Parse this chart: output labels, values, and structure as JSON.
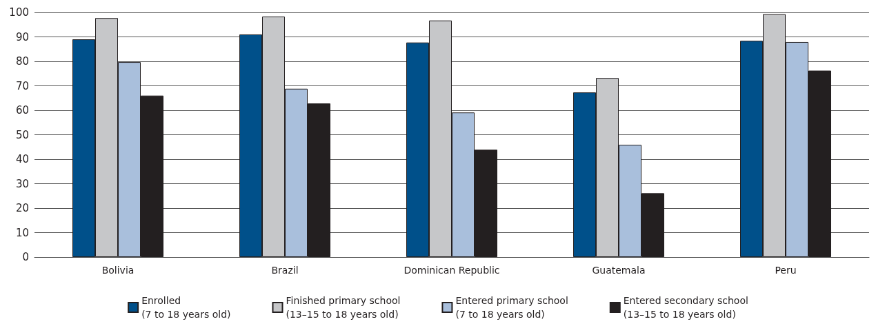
{
  "chart_data": {
    "type": "bar",
    "categories": [
      "Bolivia",
      "Brazil",
      "Dominican Republic",
      "Guatemala",
      "Peru"
    ],
    "series": [
      {
        "name": "Enrolled\n(7 to 18 years old)",
        "color": "#00508a",
        "values": [
          89,
          91,
          87.7,
          67.3,
          88.4
        ]
      },
      {
        "name": "Finished primary school\n(13–15 to 18 years old)",
        "color": "#c6c7c9",
        "values": [
          97.7,
          98.3,
          96.7,
          73.2,
          99.3
        ]
      },
      {
        "name": "Entered primary school\n(7 to 18 years old)",
        "color": "#a9bfdc",
        "values": [
          79.7,
          68.8,
          59.1,
          45.9,
          87.9
        ]
      },
      {
        "name": "Entered secondary school\n(13–15 to 18 years old)",
        "color": "#231f20",
        "values": [
          66,
          62.8,
          43.9,
          26.1,
          76.2
        ]
      }
    ],
    "ylim": [
      0,
      100
    ],
    "yticks": [
      0,
      10,
      20,
      30,
      40,
      50,
      60,
      70,
      80,
      90,
      100
    ],
    "grid": "y",
    "legend": "bottom"
  }
}
